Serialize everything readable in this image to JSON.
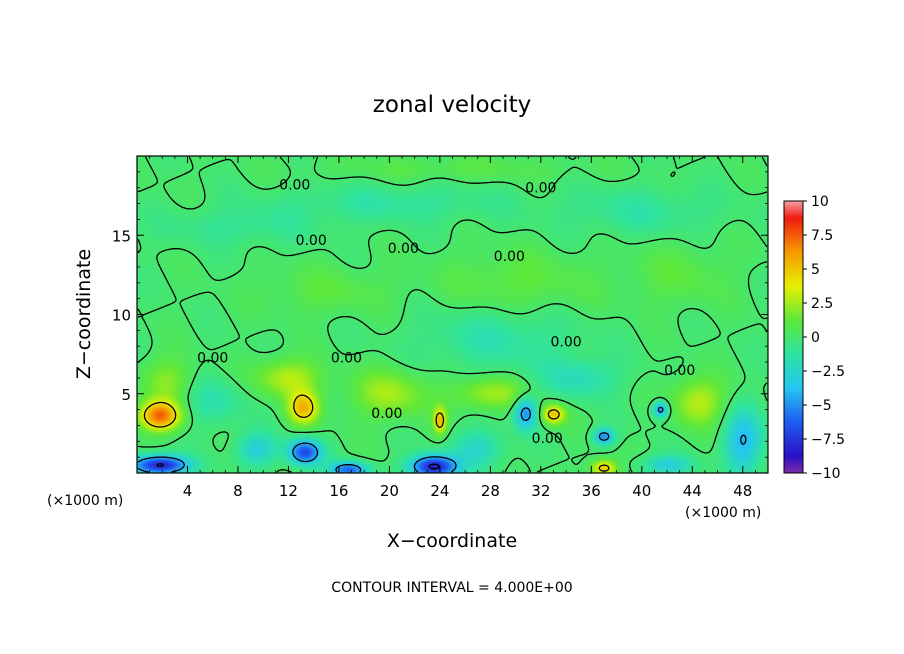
{
  "chart_data": {
    "type": "heatmap",
    "title": "zonal velocity",
    "xlabel": "X−coordinate",
    "ylabel": "Z−coordinate",
    "x_unit_left": "(×1000 m)",
    "x_unit_right": "(×1000 m)",
    "footer": "CONTOUR INTERVAL = 4.000E+00",
    "xlim": [
      0,
      50
    ],
    "ylim": [
      0,
      20
    ],
    "x_ticks": [
      4,
      8,
      12,
      16,
      20,
      24,
      28,
      32,
      36,
      40,
      44,
      48
    ],
    "x_tick_labels": [
      "4",
      "8",
      "12",
      "16",
      "20",
      "24",
      "28",
      "32",
      "36",
      "40",
      "44",
      "48"
    ],
    "y_ticks": [
      5,
      10,
      15
    ],
    "y_tick_labels": [
      "5",
      "10",
      "15"
    ],
    "colorbar": {
      "range": [
        -10,
        10
      ],
      "ticks": [
        10,
        7.5,
        5,
        2.5,
        0,
        -2.5,
        -5,
        -7.5,
        -10
      ],
      "tick_labels": [
        "10",
        "7.5",
        "5",
        "2.5",
        "0",
        "−2.5",
        "−5",
        "−7.5",
        "−10"
      ],
      "stops": [
        {
          "v": -10,
          "c": "#7a2ca8"
        },
        {
          "v": -8.75,
          "c": "#2a10c8"
        },
        {
          "v": -6.25,
          "c": "#1f5df0"
        },
        {
          "v": -3.75,
          "c": "#25c6f2"
        },
        {
          "v": -1.25,
          "c": "#2fe3a0"
        },
        {
          "v": 1.25,
          "c": "#5ee83a"
        },
        {
          "v": 3.75,
          "c": "#e6f000"
        },
        {
          "v": 6.25,
          "c": "#f59a00"
        },
        {
          "v": 8.75,
          "c": "#f01a10"
        },
        {
          "v": 10,
          "c": "#f6a0a8"
        }
      ]
    },
    "contour_labels": [
      {
        "text": "0.00",
        "x": 12.5,
        "z": 18.2
      },
      {
        "text": "0.00",
        "x": 32.0,
        "z": 18.0
      },
      {
        "text": "0.00",
        "x": 13.8,
        "z": 14.7
      },
      {
        "text": "0.00",
        "x": 21.1,
        "z": 14.2
      },
      {
        "text": "0.00",
        "x": 29.5,
        "z": 13.7
      },
      {
        "text": "0.00",
        "x": 6.0,
        "z": 7.3
      },
      {
        "text": "0.00",
        "x": 16.6,
        "z": 7.3
      },
      {
        "text": "0.00",
        "x": 34.0,
        "z": 8.3
      },
      {
        "text": "0.00",
        "x": 43.0,
        "z": 6.5
      },
      {
        "text": "0.00",
        "x": 19.8,
        "z": 3.8
      },
      {
        "text": "0.00",
        "x": 32.5,
        "z": 2.2
      }
    ],
    "features": [
      {
        "x": 1.8,
        "z": 3.6,
        "sx": 1.6,
        "sz": 0.9,
        "v": 7.2
      },
      {
        "x": 13.2,
        "z": 4.1,
        "sx": 1.2,
        "sz": 1.0,
        "v": 5.2
      },
      {
        "x": 24.0,
        "z": 3.3,
        "sx": 0.5,
        "sz": 0.8,
        "v": 5.0
      },
      {
        "x": 33.0,
        "z": 3.7,
        "sx": 0.9,
        "sz": 0.6,
        "v": 5.0
      },
      {
        "x": 37.0,
        "z": 0.3,
        "sx": 1.0,
        "sz": 0.5,
        "v": 5.0
      },
      {
        "x": 12.0,
        "z": 6.0,
        "sx": 2.5,
        "sz": 1.2,
        "v": 3.0
      },
      {
        "x": 20.0,
        "z": 5.0,
        "sx": 3.0,
        "sz": 1.5,
        "v": 2.5
      },
      {
        "x": 28.0,
        "z": 5.0,
        "sx": 3.0,
        "sz": 1.0,
        "v": 2.5
      },
      {
        "x": 44.5,
        "z": 4.5,
        "sx": 2.0,
        "sz": 1.5,
        "v": 3.0
      },
      {
        "x": 2.5,
        "z": 5.8,
        "sx": 2.0,
        "sz": 1.5,
        "v": 2.0
      },
      {
        "x": 1.8,
        "z": 0.5,
        "sx": 2.2,
        "sz": 0.6,
        "v": -8.5
      },
      {
        "x": 13.3,
        "z": 1.3,
        "sx": 1.3,
        "sz": 0.8,
        "v": -6.8
      },
      {
        "x": 16.8,
        "z": 0.2,
        "sx": 1.5,
        "sz": 0.5,
        "v": -6.0
      },
      {
        "x": 23.5,
        "z": 0.4,
        "sx": 1.8,
        "sz": 0.7,
        "v": -8.5
      },
      {
        "x": 30.8,
        "z": 3.8,
        "sx": 0.9,
        "sz": 1.0,
        "v": -5.0
      },
      {
        "x": 37.0,
        "z": 2.3,
        "sx": 0.8,
        "sz": 0.5,
        "v": -5.0
      },
      {
        "x": 41.5,
        "z": 4.0,
        "sx": 0.6,
        "sz": 0.5,
        "v": -5.0
      },
      {
        "x": 48.0,
        "z": 2.0,
        "sx": 1.5,
        "sz": 2.0,
        "v": -4.0
      },
      {
        "x": 42.0,
        "z": 0.5,
        "sx": 2.0,
        "sz": 0.6,
        "v": -3.0
      },
      {
        "x": 9.5,
        "z": 1.5,
        "sx": 1.6,
        "sz": 1.0,
        "v": -3.0
      },
      {
        "x": 27.0,
        "z": 1.5,
        "sx": 2.0,
        "sz": 1.2,
        "v": -2.5
      },
      {
        "x": 28.5,
        "z": 8.5,
        "sx": 6.0,
        "sz": 2.0,
        "v": -1.5
      },
      {
        "x": 35.0,
        "z": 6.0,
        "sx": 3.0,
        "sz": 1.2,
        "v": -2.0
      },
      {
        "x": 6.0,
        "z": 4.5,
        "sx": 2.5,
        "sz": 1.5,
        "v": -1.5
      },
      {
        "x": 20.0,
        "z": 17.0,
        "sx": 9.0,
        "sz": 1.2,
        "v": -1.2
      },
      {
        "x": 8.0,
        "z": 15.5,
        "sx": 6.0,
        "sz": 1.2,
        "v": -1.0
      },
      {
        "x": 40.0,
        "z": 16.5,
        "sx": 6.0,
        "sz": 1.5,
        "v": -1.2
      },
      {
        "x": 30.0,
        "z": 12.0,
        "sx": 6.0,
        "sz": 2.0,
        "v": 1.2
      },
      {
        "x": 15.0,
        "z": 11.5,
        "sx": 5.0,
        "sz": 1.5,
        "v": 1.0
      },
      {
        "x": 43.0,
        "z": 12.5,
        "sx": 4.0,
        "sz": 2.0,
        "v": 1.0
      },
      {
        "x": 25.0,
        "z": 19.2,
        "sx": 10.0,
        "sz": 0.8,
        "v": 0.8
      }
    ]
  }
}
